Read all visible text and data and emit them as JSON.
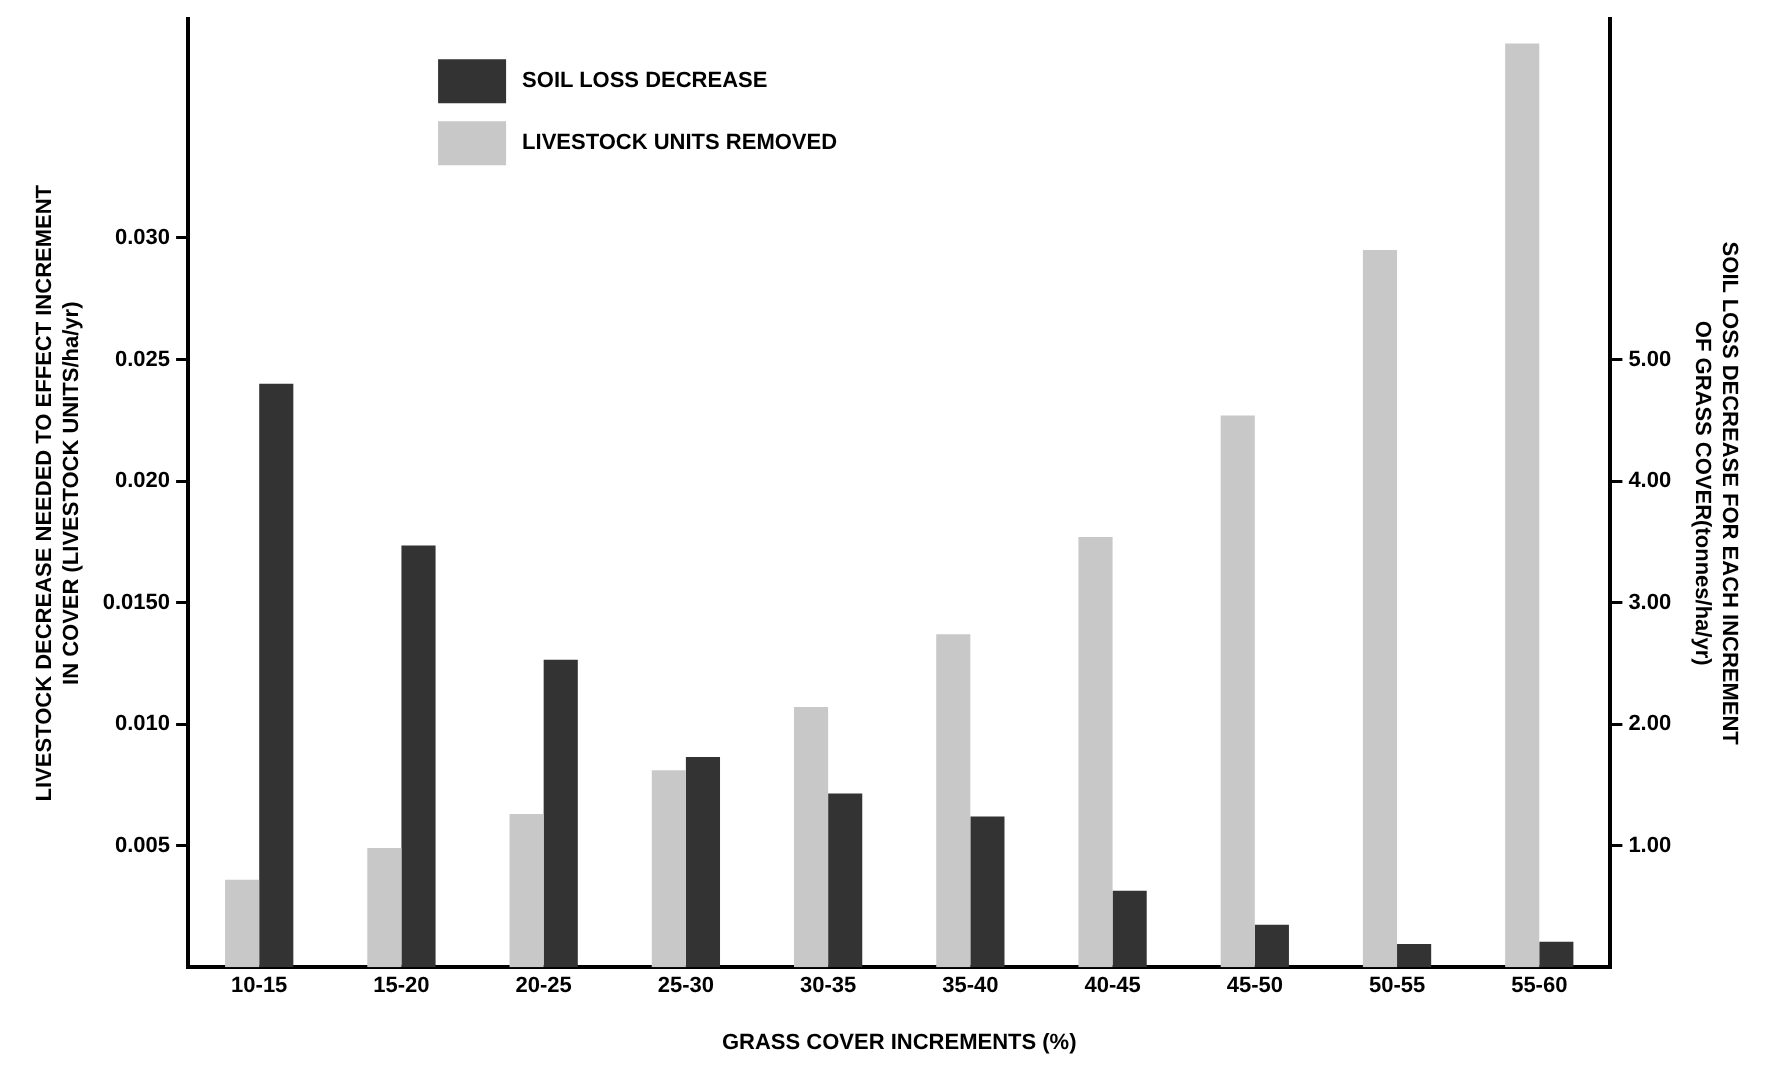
{
  "chart_data": {
    "type": "bar",
    "xlabel": "GRASS COVER INCREMENTS (%)",
    "ylabel": "LIVESTOCK DECREASE NEEDED TO EFFECT INCREMENT\nIN COVER (LIVESTOCK UNITS/ha/yr)",
    "y2label": "SOIL LOSS DECREASE FOR EACH INCREMENT\nOF GRASS COVER(tonnes/ha/yr)",
    "categories": [
      "10-15",
      "15-20",
      "20-25",
      "25-30",
      "30-35",
      "35-40",
      "40-45",
      "45-50",
      "50-55",
      "55-60"
    ],
    "series": [
      {
        "name": "LIVESTOCK UNITS REMOVED",
        "color": "#c8c8c8",
        "values": [
          0.0036,
          0.0049,
          0.0063,
          0.0081,
          0.0107,
          0.0137,
          0.0177,
          0.0227,
          0.0295,
          0.038
        ]
      },
      {
        "name": "SOIL LOSS DECREASE",
        "color": "#333333",
        "axis": "y2",
        "values": [
          4.8,
          3.47,
          2.53,
          1.73,
          1.43,
          1.24,
          0.63,
          0.35,
          0.19,
          0.21
        ]
      }
    ],
    "ylim": [
      0,
      0.039
    ],
    "yticks": [
      0.005,
      {
        "value": 0.01,
        "label": "0.010"
      },
      {
        "value": 0.015,
        "label": "0.0150"
      },
      {
        "value": 0.02,
        "label": "0.020"
      },
      {
        "value": 0.025,
        "label": "0.025"
      },
      {
        "value": 0.03,
        "label": "0.030"
      }
    ],
    "y2lim": [
      0,
      7.8
    ],
    "y2ticks": [
      {
        "value": 1,
        "label": "1.00"
      },
      {
        "value": 2,
        "label": "2.00"
      },
      {
        "value": 3,
        "label": "3.00"
      },
      {
        "value": 4,
        "label": "4.00"
      },
      {
        "value": 5,
        "label": "5.00"
      }
    ],
    "grid": false,
    "legend": "top left"
  }
}
